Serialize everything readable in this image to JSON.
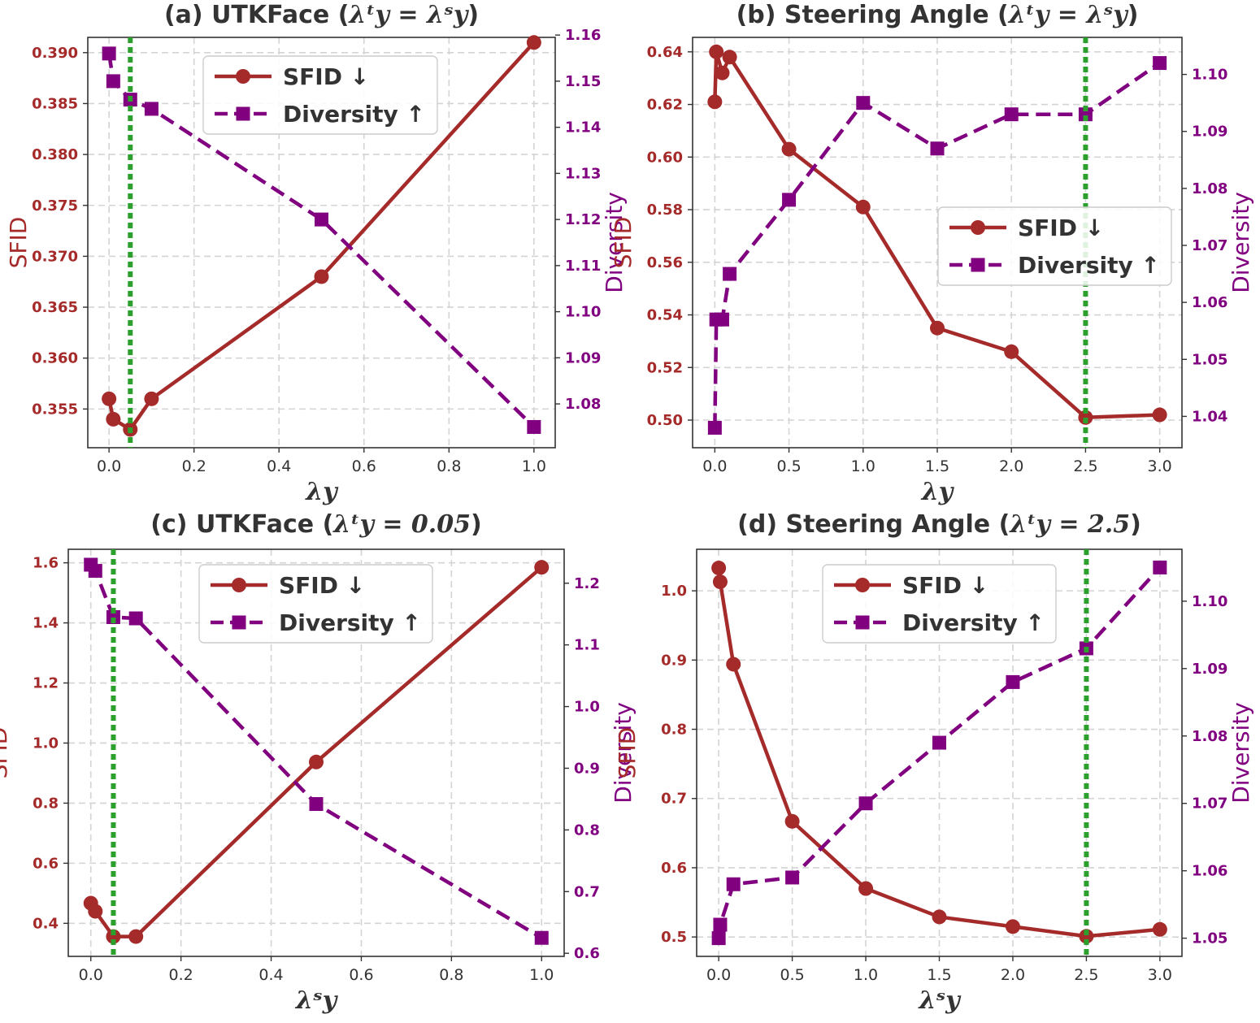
{
  "colors": {
    "sfid": "#a52a2a",
    "diversity": "#800080",
    "marker_line": "#2ca02c",
    "axis": "#333333"
  },
  "chart_data": [
    {
      "type": "line",
      "title": "(a) UTKFace (λ_y^t = λ_y^s)",
      "title_prefix": "(a) UTKFace (",
      "title_math": "λᵗy = λˢy",
      "title_suffix": ")",
      "xlabel": "λy",
      "ylabel": "SFID",
      "y2label": "Diversity",
      "xlim": [
        -0.05,
        1.05
      ],
      "xticks": [
        0.0,
        0.2,
        0.4,
        0.6,
        0.8,
        1.0
      ],
      "xtick_labels": [
        "0.0",
        "0.2",
        "0.4",
        "0.6",
        "0.8",
        "1.0"
      ],
      "ylim": [
        0.3512,
        0.3915
      ],
      "yticks": [
        0.355,
        0.36,
        0.365,
        0.37,
        0.375,
        0.38,
        0.385,
        0.39
      ],
      "ytick_labels": [
        "0.355",
        "0.360",
        "0.365",
        "0.370",
        "0.375",
        "0.380",
        "0.385",
        "0.390"
      ],
      "y2lim": [
        1.0705,
        1.1595
      ],
      "y2ticks": [
        1.08,
        1.09,
        1.1,
        1.11,
        1.12,
        1.13,
        1.14,
        1.15,
        1.16
      ],
      "y2tick_labels": [
        "1.08",
        "1.09",
        "1.10",
        "1.11",
        "1.12",
        "1.13",
        "1.14",
        "1.15",
        "1.16"
      ],
      "vline_x": 0.05,
      "legend_position": "upper center",
      "series": [
        {
          "name": "SFID ↓",
          "axis": "left",
          "style": "solid-circle",
          "x": [
            0.0,
            0.01,
            0.05,
            0.1,
            0.5,
            1.0
          ],
          "values": [
            0.356,
            0.354,
            0.353,
            0.356,
            0.368,
            0.391
          ]
        },
        {
          "name": "Diversity ↑",
          "axis": "right",
          "style": "dashed-square",
          "x": [
            0.0,
            0.01,
            0.05,
            0.1,
            0.5,
            1.0
          ],
          "values": [
            1.156,
            1.15,
            1.146,
            1.144,
            1.12,
            1.075
          ]
        }
      ]
    },
    {
      "type": "line",
      "title": "(b) Steering Angle (λ_y^t = λ_y^s)",
      "title_prefix": "(b) Steering Angle (",
      "title_math": "λᵗy = λˢy",
      "title_suffix": ")",
      "xlabel": "λy",
      "ylabel": "SFID",
      "y2label": "Diversity",
      "xlim": [
        -0.15,
        3.15
      ],
      "xticks": [
        0.0,
        0.5,
        1.0,
        1.5,
        2.0,
        2.5,
        3.0
      ],
      "xtick_labels": [
        "0.0",
        "0.5",
        "1.0",
        "1.5",
        "2.0",
        "2.5",
        "3.0"
      ],
      "ylim": [
        0.4895,
        0.6455
      ],
      "yticks": [
        0.5,
        0.52,
        0.54,
        0.56,
        0.58,
        0.6,
        0.62,
        0.64
      ],
      "ytick_labels": [
        "0.50",
        "0.52",
        "0.54",
        "0.56",
        "0.58",
        "0.60",
        "0.62",
        "0.64"
      ],
      "y2lim": [
        1.0345,
        1.1065
      ],
      "y2ticks": [
        1.04,
        1.05,
        1.06,
        1.07,
        1.08,
        1.09,
        1.1
      ],
      "y2tick_labels": [
        "1.04",
        "1.05",
        "1.06",
        "1.07",
        "1.08",
        "1.09",
        "1.10"
      ],
      "vline_x": 2.5,
      "legend_position": "center right",
      "series": [
        {
          "name": "SFID ↓",
          "axis": "left",
          "style": "solid-circle",
          "x": [
            0.0,
            0.01,
            0.05,
            0.1,
            0.5,
            1.0,
            1.5,
            2.0,
            2.5,
            3.0
          ],
          "values": [
            0.621,
            0.64,
            0.632,
            0.638,
            0.603,
            0.581,
            0.535,
            0.526,
            0.501,
            0.502
          ]
        },
        {
          "name": "Diversity ↑",
          "axis": "right",
          "style": "dashed-square",
          "x": [
            0.0,
            0.01,
            0.05,
            0.1,
            0.5,
            1.0,
            1.5,
            2.0,
            2.5,
            3.0
          ],
          "values": [
            1.038,
            1.057,
            1.057,
            1.065,
            1.078,
            1.095,
            1.087,
            1.093,
            1.093,
            1.102
          ]
        }
      ]
    },
    {
      "type": "line",
      "title": "(c) UTKFace (λ_y^t = 0.05)",
      "title_prefix": "(c) UTKFace (",
      "title_math": "λᵗy = 0.05",
      "title_suffix": ")",
      "xlabel": "λˢy",
      "ylabel": "SFID",
      "y2label": "Diversity",
      "xlim": [
        -0.05,
        1.05
      ],
      "xticks": [
        0.0,
        0.2,
        0.4,
        0.6,
        0.8,
        1.0
      ],
      "xtick_labels": [
        "0.0",
        "0.2",
        "0.4",
        "0.6",
        "0.8",
        "1.0"
      ],
      "ylim": [
        0.29,
        1.645
      ],
      "yticks": [
        0.4,
        0.6,
        0.8,
        1.0,
        1.2,
        1.4,
        1.6
      ],
      "ytick_labels": [
        "0.4",
        "0.6",
        "0.8",
        "1.0",
        "1.2",
        "1.4",
        "1.6"
      ],
      "y2lim": [
        0.595,
        1.255
      ],
      "y2ticks": [
        0.6,
        0.7,
        0.8,
        0.9,
        1.0,
        1.1,
        1.2
      ],
      "y2tick_labels": [
        "0.6",
        "0.7",
        "0.8",
        "0.9",
        "1.0",
        "1.1",
        "1.2"
      ],
      "vline_x": 0.05,
      "legend_position": "upper center",
      "series": [
        {
          "name": "SFID ↓",
          "axis": "left",
          "style": "solid-circle",
          "x": [
            0.0,
            0.01,
            0.05,
            0.1,
            0.5,
            1.0
          ],
          "values": [
            0.467,
            0.44,
            0.356,
            0.356,
            0.937,
            1.585
          ]
        },
        {
          "name": "Diversity ↑",
          "axis": "right",
          "style": "dashed-square",
          "x": [
            0.0,
            0.01,
            0.05,
            0.1,
            0.5,
            1.0
          ],
          "values": [
            1.23,
            1.22,
            1.145,
            1.143,
            0.842,
            0.625
          ]
        }
      ]
    },
    {
      "type": "line",
      "title": "(d) Steering Angle (λ_y^t = 2.5)",
      "title_prefix": "(d) Steering Angle (",
      "title_math": "λᵗy = 2.5",
      "title_suffix": ")",
      "xlabel": "λˢy",
      "ylabel": "SFID",
      "y2label": "Diversity",
      "xlim": [
        -0.15,
        3.15
      ],
      "xticks": [
        0.0,
        0.5,
        1.0,
        1.5,
        2.0,
        2.5,
        3.0
      ],
      "xtick_labels": [
        "0.0",
        "0.5",
        "1.0",
        "1.5",
        "2.0",
        "2.5",
        "3.0"
      ],
      "ylim": [
        0.472,
        1.06
      ],
      "yticks": [
        0.5,
        0.6,
        0.7,
        0.8,
        0.9,
        1.0
      ],
      "ytick_labels": [
        "0.5",
        "0.6",
        "0.7",
        "0.8",
        "0.9",
        "1.0"
      ],
      "y2lim": [
        1.0473,
        1.1077
      ],
      "y2ticks": [
        1.05,
        1.06,
        1.07,
        1.08,
        1.09,
        1.1
      ],
      "y2tick_labels": [
        "1.05",
        "1.06",
        "1.07",
        "1.08",
        "1.09",
        "1.10"
      ],
      "vline_x": 2.5,
      "legend_position": "upper center",
      "series": [
        {
          "name": "SFID ↓",
          "axis": "left",
          "style": "solid-circle",
          "x": [
            0.0,
            0.01,
            0.1,
            0.5,
            1.0,
            1.5,
            2.0,
            2.5,
            3.0
          ],
          "values": [
            1.033,
            1.013,
            0.894,
            0.667,
            0.57,
            0.529,
            0.515,
            0.501,
            0.511
          ]
        },
        {
          "name": "Diversity ↑",
          "axis": "right",
          "style": "dashed-square",
          "x": [
            0.0,
            0.01,
            0.1,
            0.5,
            1.0,
            1.5,
            2.0,
            2.5,
            3.0
          ],
          "values": [
            1.05,
            1.052,
            1.058,
            1.059,
            1.07,
            1.079,
            1.088,
            1.093,
            1.105
          ]
        }
      ]
    }
  ]
}
